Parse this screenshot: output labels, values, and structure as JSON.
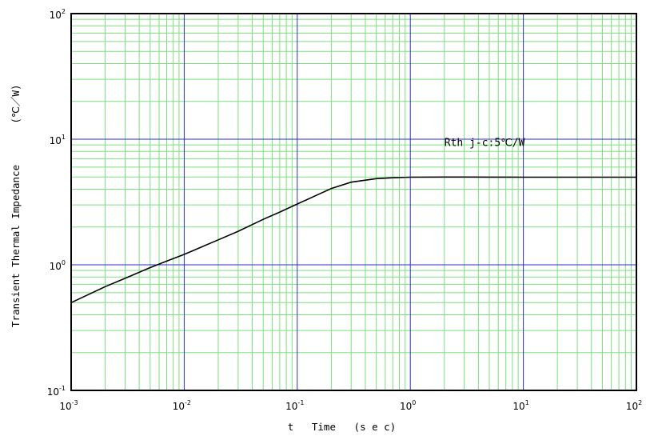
{
  "chart_data": {
    "type": "line",
    "xscale": "log",
    "yscale": "log",
    "xlim": [
      0.001,
      100
    ],
    "ylim": [
      0.1,
      100
    ],
    "x_ticks": [
      {
        "base": "10",
        "exp": "-3"
      },
      {
        "base": "10",
        "exp": "-2"
      },
      {
        "base": "10",
        "exp": "-1"
      },
      {
        "base": "10",
        "exp": "0"
      },
      {
        "base": "10",
        "exp": "1"
      },
      {
        "base": "10",
        "exp": "2"
      }
    ],
    "y_ticks": [
      {
        "base": "10",
        "exp": "-1"
      },
      {
        "base": "10",
        "exp": "0"
      },
      {
        "base": "10",
        "exp": "1"
      },
      {
        "base": "10",
        "exp": "2"
      }
    ],
    "xlabel": "t   Time   (s e c)",
    "ylabel": "Transient Thermal Impedance",
    "ylabel_unit": "(℃／W)",
    "annotation": {
      "text": "Rth j-c:5℃/W",
      "x": 2,
      "y": 8.8
    },
    "grid": {
      "major": true,
      "minor": true,
      "major_color": "#2b2bd6",
      "minor_color": "#7be07b"
    },
    "series": [
      {
        "color": "#000000",
        "x": [
          0.001,
          0.002,
          0.003,
          0.005,
          0.007,
          0.01,
          0.02,
          0.03,
          0.05,
          0.07,
          0.1,
          0.15,
          0.2,
          0.3,
          0.5,
          0.7,
          1,
          2,
          3,
          5,
          10,
          20,
          50,
          100
        ],
        "y": [
          0.5,
          0.67,
          0.78,
          0.95,
          1.07,
          1.21,
          1.58,
          1.85,
          2.3,
          2.63,
          3.05,
          3.6,
          4.05,
          4.55,
          4.85,
          4.93,
          4.98,
          5.0,
          5.0,
          4.99,
          4.98,
          4.98,
          4.98,
          4.98
        ]
      }
    ]
  }
}
